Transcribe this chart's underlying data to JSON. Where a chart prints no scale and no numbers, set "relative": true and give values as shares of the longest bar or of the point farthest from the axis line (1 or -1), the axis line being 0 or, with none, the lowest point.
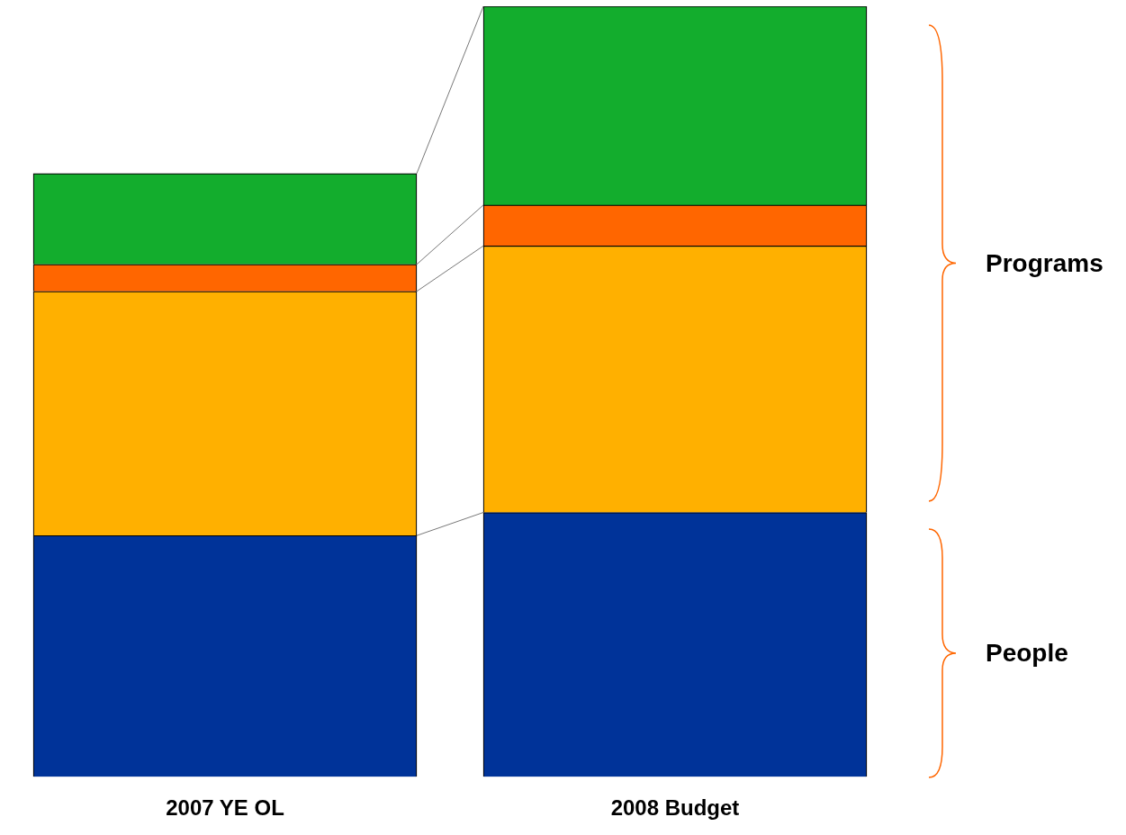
{
  "chart_data": {
    "type": "bar",
    "stacked": true,
    "relative": true,
    "categories": [
      "2007 YE OL",
      "2008 Budget"
    ],
    "series": [
      {
        "color": "#003399",
        "values": [
          0.313,
          0.343
        ]
      },
      {
        "color": "#ffb000",
        "values": [
          0.317,
          0.346
        ]
      },
      {
        "color": "#ff6600",
        "values": [
          0.035,
          0.053
        ]
      },
      {
        "color": "#13ad2d",
        "values": [
          0.118,
          0.258
        ]
      }
    ],
    "annotations": [
      "Programs",
      "People"
    ],
    "grid": false,
    "legend": false
  }
}
